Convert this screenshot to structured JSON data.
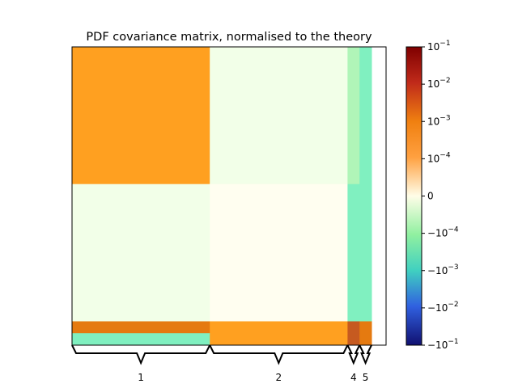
{
  "chart_data": {
    "type": "heatmap",
    "title": "PDF covariance matrix, normalised to the theory",
    "xlabel": "",
    "ylabel": "",
    "scale": "symlog",
    "colorbar": {
      "ticks": [
        "10^{-1}",
        "10^{-2}",
        "10^{-3}",
        "10^{-4}",
        "0",
        "−10^{-4}",
        "−10^{-3}",
        "−10^{-2}",
        "−10^{-1}"
      ],
      "tick_labels": [
        {
          "base": "10",
          "exp": "−1",
          "text": "10^-1"
        },
        {
          "base": "10",
          "exp": "−2",
          "text": "10^-2"
        },
        {
          "base": "10",
          "exp": "−3",
          "text": "10^-3"
        },
        {
          "base": "10",
          "exp": "−4",
          "text": "10^-4"
        },
        {
          "base": "0",
          "exp": "",
          "text": "0"
        },
        {
          "base": "−10",
          "exp": "−4",
          "text": "−10^-4"
        },
        {
          "base": "−10",
          "exp": "−3",
          "text": "−10^-3"
        },
        {
          "base": "−10",
          "exp": "−2",
          "text": "−10^-2"
        },
        {
          "base": "−10",
          "exp": "−1",
          "text": "−10^-1"
        }
      ],
      "range": [
        -0.1,
        0.1
      ]
    },
    "blocks": [
      {
        "label": "1",
        "fraction": 0.46
      },
      {
        "label": "2",
        "fraction": 0.46
      },
      {
        "label": "4",
        "fraction": 0.04
      },
      {
        "label": "5",
        "fraction": 0.04
      }
    ],
    "block_values": [
      [
        0.0008,
        -3e-05,
        -0.0002,
        -0.0005
      ],
      [
        -3e-05,
        8e-05,
        -0.0005,
        -0.0003
      ],
      [
        0.0015,
        0.0006,
        0.004,
        0.0012
      ],
      [
        -0.0006,
        0.0009,
        0.003,
        0.0025
      ]
    ],
    "brace_labels": [
      "1",
      "2",
      "4",
      "5"
    ]
  }
}
